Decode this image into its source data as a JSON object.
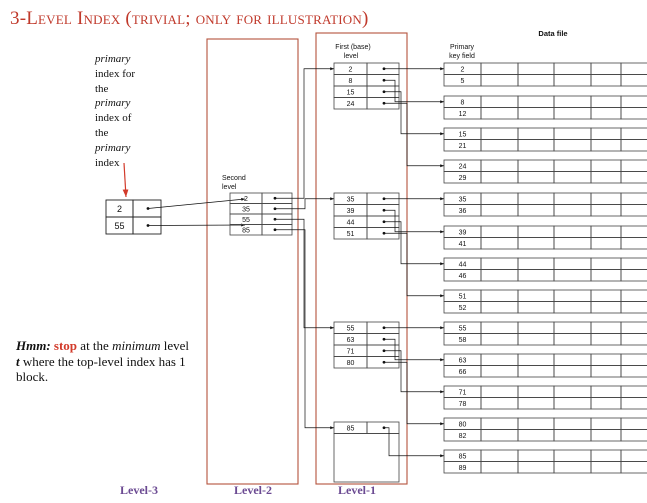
{
  "title": "3-Level Index (trivial; only for illustration)",
  "note": {
    "lines": [
      {
        "text": "primary",
        "italic": true
      },
      {
        "text": "index for",
        "italic": false
      },
      {
        "text": "the",
        "italic": false
      },
      {
        "text": "primary",
        "italic": true
      },
      {
        "text": "index of",
        "italic": false
      },
      {
        "text": "the",
        "italic": false
      },
      {
        "text": "primary",
        "italic": true
      },
      {
        "text": "index",
        "italic": false
      }
    ]
  },
  "hmm": {
    "p1": "Hmm:",
    "p2": " ",
    "stop": "stop",
    "p3": " at the ",
    "minimum": "minimum",
    "p4": " level ",
    "t": "t",
    "p5": " where the top-level index has 1 block."
  },
  "levels": {
    "level3": "Level-3",
    "level2": "Level-2",
    "level1": "Level-1"
  },
  "colors": {
    "title": "#c0392b",
    "box": "#b5533c",
    "level_label": "#6b4a92",
    "stop": "#d23a2a",
    "pointer_arrow": "#d23a2a"
  },
  "labels": {
    "second_level": [
      "Second",
      "level"
    ],
    "first_level": [
      "First (base)",
      "level"
    ],
    "primary_key": [
      "Primary",
      "key field"
    ],
    "data_file": "Data file"
  },
  "top_index": [
    "2",
    "55"
  ],
  "second_index": [
    "2",
    "35",
    "55",
    "85"
  ],
  "first_index_blocks": [
    [
      "2",
      "8",
      "15",
      "24"
    ],
    [
      "35",
      "39",
      "44",
      "51"
    ],
    [
      "55",
      "63",
      "71",
      "80"
    ],
    [
      "85"
    ]
  ],
  "data_blocks": [
    [
      "2",
      "5"
    ],
    [
      "8",
      "12"
    ],
    [
      "15",
      "21"
    ],
    [
      "24",
      "29"
    ],
    [
      "35",
      "36"
    ],
    [
      "39",
      "41"
    ],
    [
      "44",
      "46"
    ],
    [
      "51",
      "52"
    ],
    [
      "55",
      "58"
    ],
    [
      "63",
      "66"
    ],
    [
      "71",
      "78"
    ],
    [
      "80",
      "82"
    ],
    [
      "85",
      "89"
    ]
  ]
}
